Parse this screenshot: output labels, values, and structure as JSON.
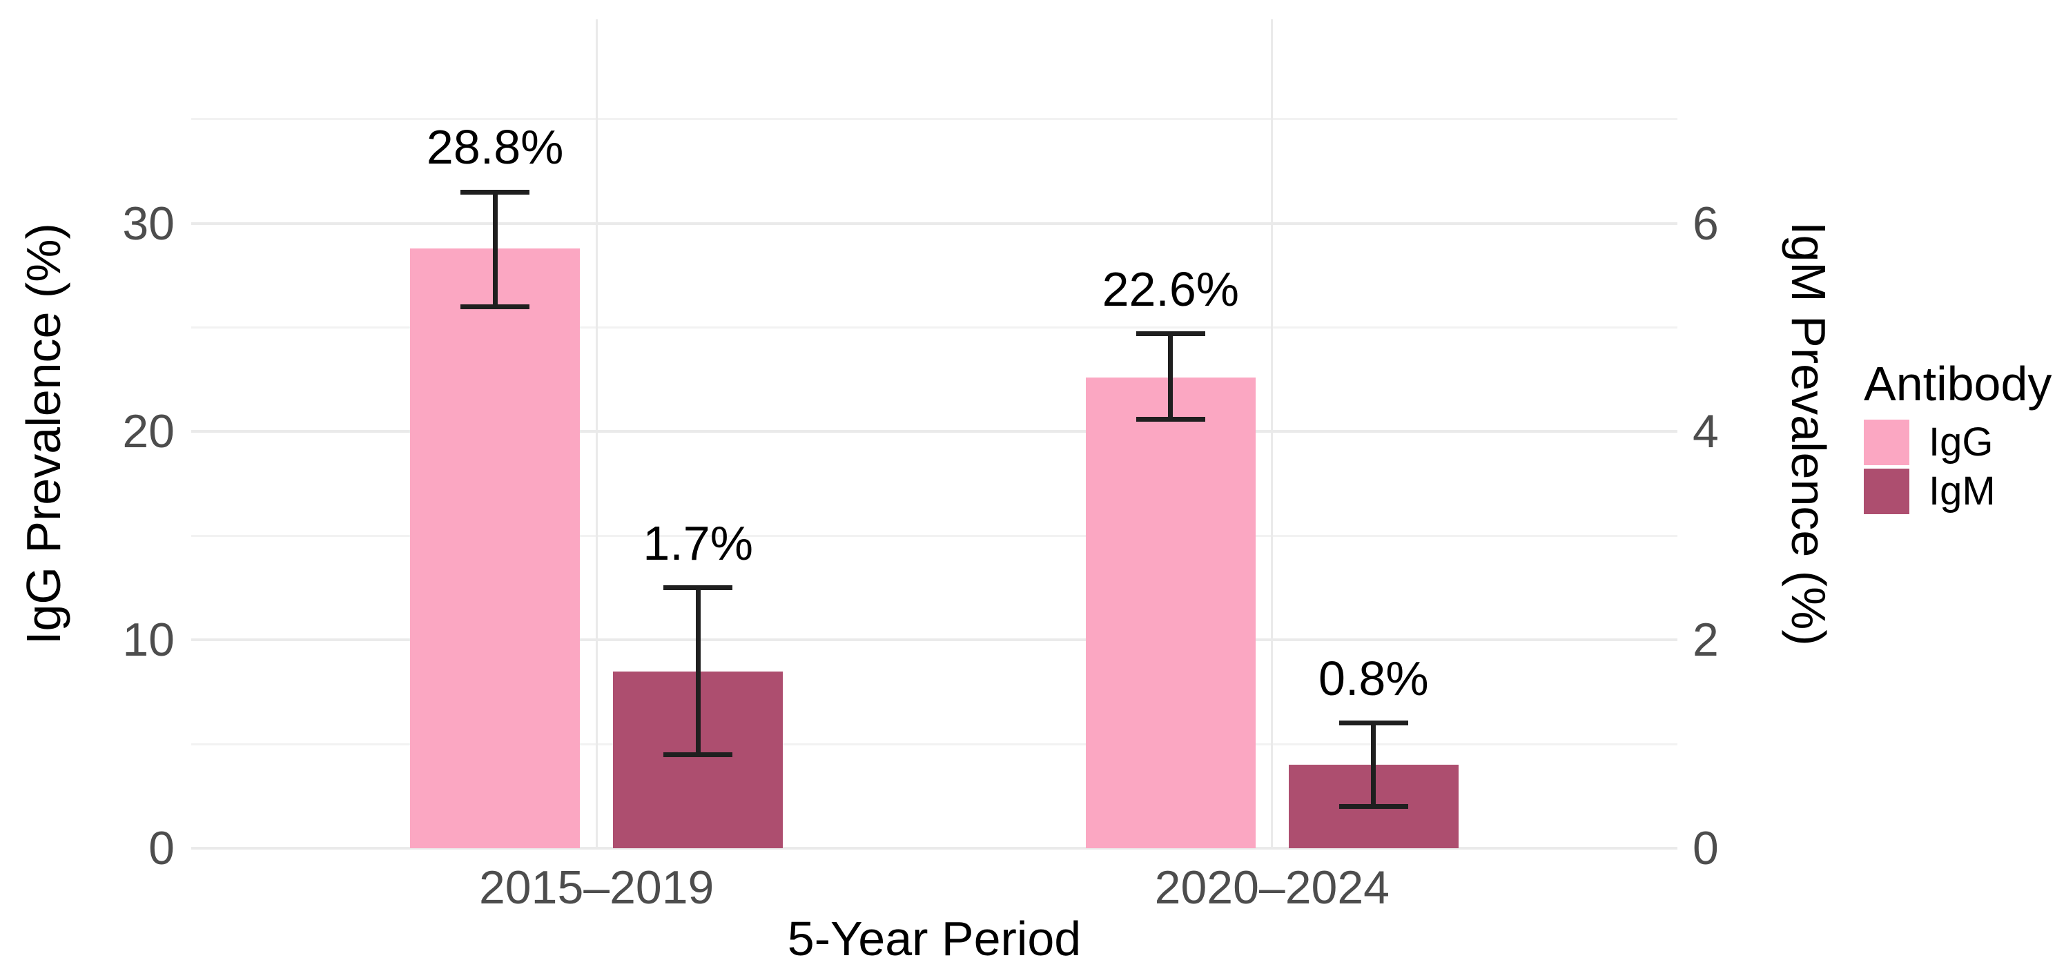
{
  "figure": {
    "background": "#FFFFFF"
  },
  "chart_data": {
    "type": "bar",
    "title": "",
    "categories": [
      "2015–2019",
      "2020–2024"
    ],
    "xlabel": "5-Year Period",
    "ylabel_left": "IgG Prevalence (%)",
    "ylabel_right": "IgM Prevalence (%)",
    "axes": {
      "left": {
        "ticks": [
          0,
          10,
          20,
          30
        ],
        "minor_gridlines": [
          5,
          15,
          25,
          35
        ],
        "range": [
          0,
          39.8
        ]
      },
      "right": {
        "ticks": [
          0,
          2,
          4,
          6
        ],
        "range": [
          0,
          7.96
        ]
      }
    },
    "series": [
      {
        "name": "IgG",
        "axis": "left",
        "color": "#FBA7C2",
        "values": [
          28.8,
          22.6
        ],
        "ci_low": [
          26.0,
          20.6
        ],
        "ci_high": [
          31.5,
          24.7
        ],
        "labels": [
          "28.8%",
          "22.6%"
        ]
      },
      {
        "name": "IgM",
        "axis": "right",
        "color": "#AD4E6F",
        "values": [
          1.7,
          0.8
        ],
        "ci_low": [
          0.9,
          0.4
        ],
        "ci_high": [
          2.5,
          1.2
        ],
        "labels": [
          "1.7%",
          "0.8%"
        ]
      }
    ],
    "legend": {
      "title": "Antibody",
      "position": "right"
    },
    "grid": {
      "major_color": "#EAEAEA",
      "minor_color": "#F2F2F2",
      "vertical_color": "#EAEAEA"
    },
    "errorbar_color": "#1F1F1F",
    "tick_label_color": "#4D4D4D",
    "text_color": "#000000"
  }
}
